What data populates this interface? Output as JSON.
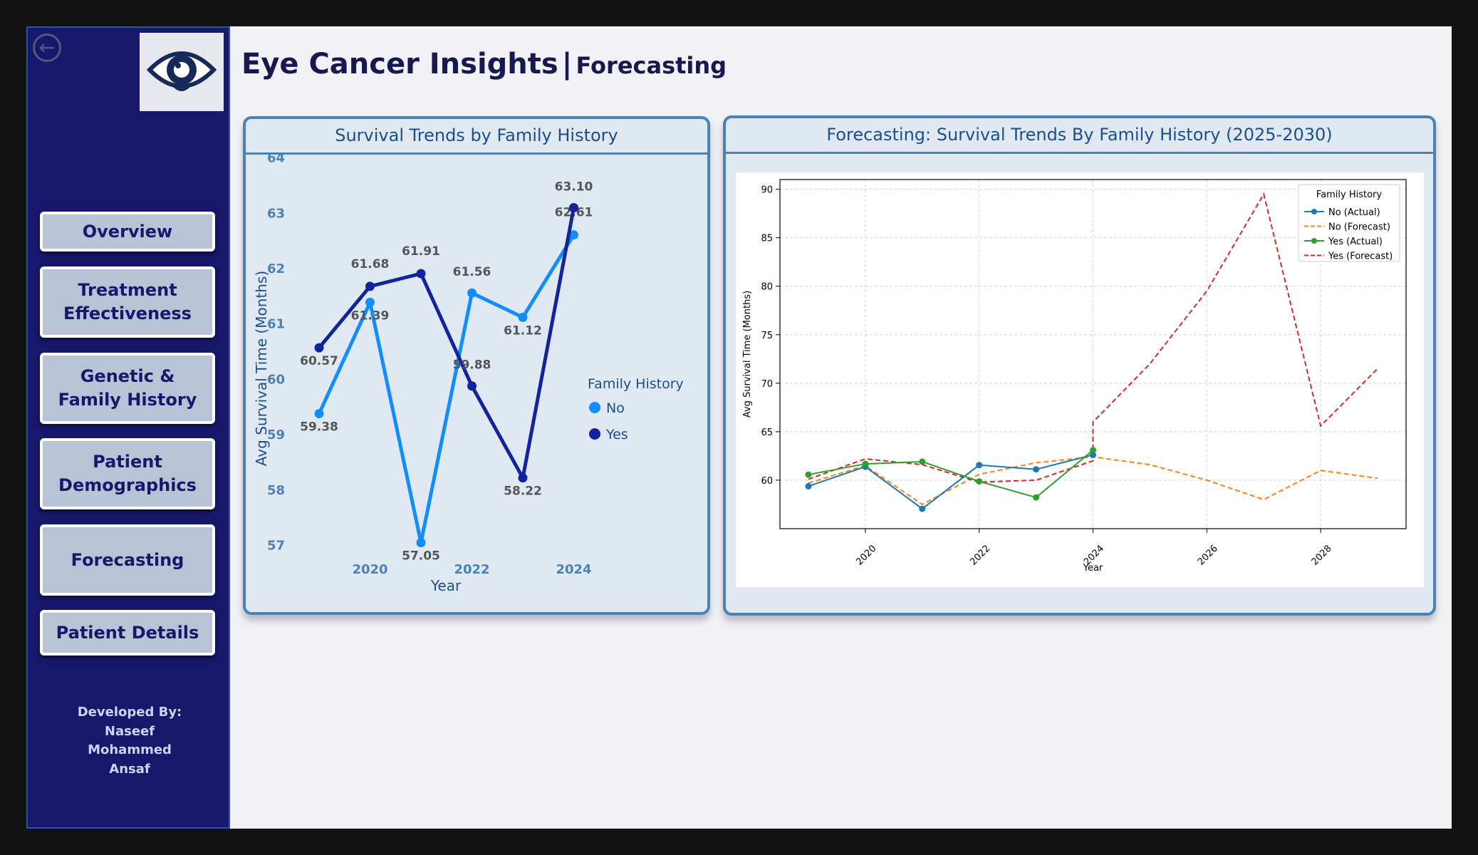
{
  "app": {
    "title": "Eye Cancer Insights",
    "separator": "|",
    "page": "Forecasting"
  },
  "sidebar": {
    "back_icon": "back-arrow-icon",
    "logo_icon": "eye-logo-icon",
    "nav": [
      {
        "label": "Overview"
      },
      {
        "label": "Treatment Effectiveness"
      },
      {
        "label": "Genetic & Family History"
      },
      {
        "label": "Patient Demographics"
      },
      {
        "label": "Forecasting"
      },
      {
        "label": "Patient Details"
      }
    ],
    "developed_by": "Developed By:",
    "developer": [
      "Naseef",
      "Mohammed",
      "Ansaf"
    ]
  },
  "colors": {
    "sidebar_bg": "#17186b",
    "no_series": "#118dff",
    "yes_series": "#12239e"
  },
  "chart_data": [
    {
      "type": "line",
      "title": "Survival Trends by Family History",
      "xlabel": "Year",
      "ylabel": "Avg Survival Time (Months)",
      "x": [
        2019,
        2020,
        2021,
        2022,
        2023,
        2024
      ],
      "x_ticks": [
        "2020",
        "2022",
        "2024"
      ],
      "ylim": [
        57,
        64
      ],
      "y_ticks": [
        "57",
        "58",
        "59",
        "60",
        "61",
        "62",
        "63",
        "64"
      ],
      "legend": {
        "title": "Family History",
        "placement": "right"
      },
      "grid": false,
      "series": [
        {
          "name": "No",
          "color": "#118dff",
          "values": [
            59.38,
            61.39,
            57.05,
            61.56,
            61.12,
            62.61
          ],
          "labels": [
            "59.38",
            "61.39",
            "57.05",
            "61.56",
            "61.12",
            "62.61"
          ]
        },
        {
          "name": "Yes",
          "color": "#12239e",
          "values": [
            60.57,
            61.68,
            61.91,
            59.88,
            58.22,
            63.1
          ],
          "labels": [
            "60.57",
            "61.68",
            "61.91",
            "59.88",
            "58.22",
            "63.10"
          ]
        }
      ]
    },
    {
      "type": "line",
      "title": "Forecasting: Survival Trends By Family History (2025-2030)",
      "xlabel": "Year",
      "ylabel": "Avg Survival Time (Months)",
      "xlim": [
        2018.5,
        2029.5
      ],
      "x_ticks": [
        "2020",
        "2022",
        "2024",
        "2026",
        "2028"
      ],
      "ylim": [
        55,
        91
      ],
      "y_ticks": [
        "60",
        "65",
        "70",
        "75",
        "80",
        "85",
        "90"
      ],
      "grid": true,
      "legend": {
        "title": "Family History",
        "placement": "top-right"
      },
      "series": [
        {
          "name": "No (Actual)",
          "style": "solid-marker",
          "color": "#1f77b4",
          "x": [
            2019,
            2020,
            2021,
            2022,
            2023,
            2024
          ],
          "values": [
            59.38,
            61.39,
            57.05,
            61.56,
            61.12,
            62.61
          ]
        },
        {
          "name": "No (Forecast)",
          "style": "dashed",
          "color": "#ff7f0e",
          "x": [
            2019,
            2020,
            2021,
            2022,
            2023,
            2024,
            2025,
            2026,
            2027,
            2028,
            2029
          ],
          "values": [
            59.7,
            61.5,
            57.5,
            60.6,
            61.8,
            62.4,
            61.6,
            60.0,
            58.0,
            61.0,
            60.2
          ]
        },
        {
          "name": "Yes (Actual)",
          "style": "solid-marker",
          "color": "#2ca02c",
          "x": [
            2019,
            2020,
            2021,
            2022,
            2023,
            2024
          ],
          "values": [
            60.57,
            61.68,
            61.91,
            59.88,
            58.22,
            63.1
          ]
        },
        {
          "name": "Yes (Forecast)",
          "style": "dashed",
          "color": "#d62728",
          "x": [
            2019,
            2020,
            2021,
            2022,
            2023,
            2024,
            2024,
            2025,
            2026,
            2027,
            2028,
            2029
          ],
          "values": [
            60.1,
            62.2,
            61.6,
            59.8,
            60.0,
            62.0,
            66.0,
            72.0,
            79.5,
            89.5,
            65.6,
            71.5
          ]
        }
      ]
    }
  ]
}
